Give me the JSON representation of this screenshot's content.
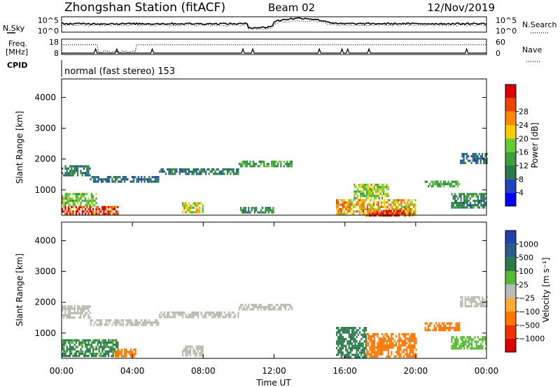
{
  "header": {
    "station": "Zhongshan Station (fitACF)",
    "beam": "Beam 02",
    "date": "12/Nov/2019"
  },
  "scan_info": {
    "label": "normal (fast stereo) 153"
  },
  "nsky_panel": {
    "left_label": "N.Sky",
    "right_label": "N.Search",
    "left_ticks": [
      "10^5",
      "10^0"
    ],
    "right_ticks": [
      "10^5",
      "10^0"
    ]
  },
  "freq_panel": {
    "left_label_line1": "Freq.",
    "left_label_line2": "[MHz]",
    "cpid_label": "CPID",
    "right_label": "Nave",
    "left_ticks": [
      "18",
      "8"
    ],
    "right_ticks": [
      "60",
      "0"
    ]
  },
  "colors": {
    "power_scale": [
      "#0000ff",
      "#2244bb",
      "#2a7a4a",
      "#3aa03a",
      "#66cc33",
      "#ffcc00",
      "#ff8800",
      "#ee4400",
      "#dd0000"
    ],
    "velocity_scale": [
      "#2244aa",
      "#2a5a8a",
      "#2a7a4a",
      "#55bb33",
      "#bbbbbb",
      "#ffaa33",
      "#ff7700",
      "#ee3300",
      "#dd0000"
    ],
    "ground_scatter": "#bbbbb0"
  },
  "chart_data": [
    {
      "type": "heatmap",
      "panel": "power",
      "xlabel": "",
      "ylabel": "Slant Range [km]",
      "x_ticks": [
        "00:00",
        "04:00",
        "08:00",
        "12:00",
        "16:00",
        "20:00",
        "00:00"
      ],
      "xlim_hours": [
        0,
        24
      ],
      "ylim_km": [
        180,
        4600
      ],
      "y_ticks": [
        1000,
        2000,
        3000,
        4000
      ],
      "colorbar": {
        "label": "Power [dB]",
        "ticks": [
          "4",
          "8",
          "12",
          "16",
          "20",
          "24",
          "28"
        ],
        "range": [
          0,
          30
        ]
      },
      "regions": [
        {
          "t0": 0.0,
          "t1": 1.6,
          "r0": 1500,
          "r1": 1800,
          "v": 8
        },
        {
          "t0": 1.6,
          "t1": 5.5,
          "r0": 1300,
          "r1": 1450,
          "v": 7
        },
        {
          "t0": 5.5,
          "t1": 10.0,
          "r0": 1500,
          "r1": 1700,
          "v": 8
        },
        {
          "t0": 10.0,
          "t1": 13.0,
          "r0": 1750,
          "r1": 1950,
          "v": 11
        },
        {
          "t0": 0.0,
          "t1": 3.2,
          "r0": 250,
          "r1": 480,
          "v": 27
        },
        {
          "t0": 0.0,
          "t1": 2.0,
          "r0": 480,
          "r1": 900,
          "v": 14
        },
        {
          "t0": 6.8,
          "t1": 8.0,
          "r0": 300,
          "r1": 600,
          "v": 17
        },
        {
          "t0": 10.0,
          "t1": 12.0,
          "r0": 300,
          "r1": 450,
          "v": 9
        },
        {
          "t0": 15.5,
          "t1": 20.0,
          "r0": 250,
          "r1": 700,
          "v": 20
        },
        {
          "t0": 17.0,
          "t1": 19.8,
          "r0": 180,
          "r1": 350,
          "v": 27
        },
        {
          "t0": 16.5,
          "t1": 18.5,
          "r0": 700,
          "r1": 1200,
          "v": 15
        },
        {
          "t0": 20.5,
          "t1": 22.5,
          "r0": 1100,
          "r1": 1300,
          "v": 12
        },
        {
          "t0": 22.0,
          "t1": 24.0,
          "r0": 400,
          "r1": 900,
          "v": 9
        },
        {
          "t0": 22.5,
          "t1": 24.0,
          "r0": 1900,
          "r1": 2200,
          "v": 7
        }
      ]
    },
    {
      "type": "heatmap",
      "panel": "velocity",
      "xlabel": "Time UT",
      "ylabel": "Slant Range [km]",
      "x_ticks": [
        "00:00",
        "04:00",
        "08:00",
        "12:00",
        "16:00",
        "20:00",
        "00:00"
      ],
      "xlim_hours": [
        0,
        24
      ],
      "ylim_km": [
        180,
        4600
      ],
      "y_ticks": [
        1000,
        2000,
        3000,
        4000
      ],
      "colorbar": {
        "label": "Velocity [m s⁻¹]",
        "ticks": [
          "1000",
          "500",
          "100",
          "25",
          "−25",
          "−100",
          "−500",
          "−1000"
        ]
      },
      "regions": [
        {
          "t0": 0.0,
          "t1": 1.6,
          "r0": 1500,
          "r1": 1900,
          "v": "gs"
        },
        {
          "t0": 1.6,
          "t1": 5.5,
          "r0": 1300,
          "r1": 1450,
          "v": "gs"
        },
        {
          "t0": 5.5,
          "t1": 10.0,
          "r0": 1500,
          "r1": 1700,
          "v": "gs"
        },
        {
          "t0": 10.0,
          "t1": 13.0,
          "r0": 1750,
          "r1": 1950,
          "v": "gs"
        },
        {
          "t0": 0.0,
          "t1": 3.2,
          "r0": 250,
          "r1": 800,
          "v": 120
        },
        {
          "t0": 3.0,
          "t1": 4.2,
          "r0": 250,
          "r1": 500,
          "v": -150
        },
        {
          "t0": 6.8,
          "t1": 8.0,
          "r0": 300,
          "r1": 600,
          "v": "gs"
        },
        {
          "t0": 15.5,
          "t1": 17.2,
          "r0": 250,
          "r1": 1200,
          "v": 150
        },
        {
          "t0": 17.2,
          "t1": 20.0,
          "r0": 250,
          "r1": 1000,
          "v": -200
        },
        {
          "t0": 20.5,
          "t1": 22.5,
          "r0": 1100,
          "r1": 1350,
          "v": -150
        },
        {
          "t0": 22.0,
          "t1": 24.0,
          "r0": 500,
          "r1": 900,
          "v": 60
        },
        {
          "t0": 22.5,
          "t1": 24.0,
          "r0": 1900,
          "r1": 2200,
          "v": "gs"
        }
      ]
    }
  ]
}
